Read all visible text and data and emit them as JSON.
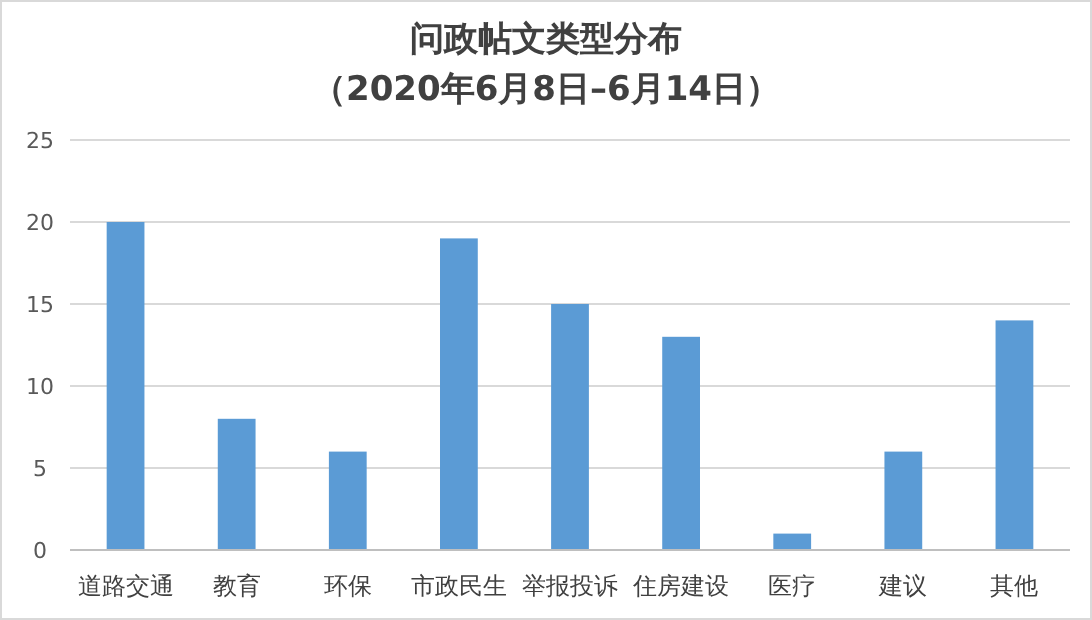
{
  "chart_data": {
    "type": "bar",
    "title": "问政帖文类型分布",
    "subtitle": "（2020年6月8日–6月14日）",
    "categories": [
      "道路交通",
      "教育",
      "环保",
      "市政民生",
      "举报投诉",
      "住房建设",
      "医疗",
      "建议",
      "其他"
    ],
    "values": [
      20,
      8,
      6,
      19,
      15,
      13,
      1,
      6,
      14
    ],
    "color": "#5b9bd5",
    "ylim": [
      0,
      25
    ],
    "yticks": [
      0,
      5,
      10,
      15,
      20,
      25
    ],
    "grid": "y"
  }
}
